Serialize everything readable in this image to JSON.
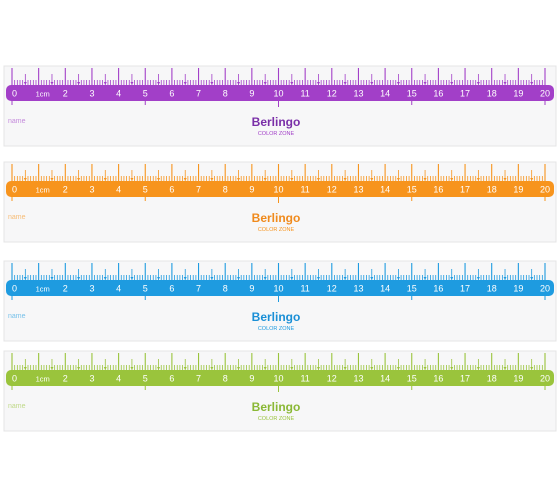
{
  "rulers": [
    {
      "id": "purple",
      "color": "#a23fc8",
      "name_label": "name",
      "brand": "Berlingo",
      "brand_color": "#7a2fa8",
      "zone_label": "COLOR ZONE",
      "numbers": [
        "0",
        "1cm",
        "2",
        "3",
        "4",
        "5",
        "6",
        "7",
        "8",
        "9",
        "10",
        "11",
        "12",
        "13",
        "14",
        "15",
        "16",
        "17",
        "18",
        "19",
        "20"
      ]
    },
    {
      "id": "orange",
      "color": "#f7941d",
      "name_label": "name",
      "brand": "Berlingo",
      "brand_color": "#f08a1c",
      "zone_label": "COLOR ZONE",
      "numbers": [
        "0",
        "1cm",
        "2",
        "3",
        "4",
        "5",
        "6",
        "7",
        "8",
        "9",
        "10",
        "11",
        "12",
        "13",
        "14",
        "15",
        "16",
        "17",
        "18",
        "19",
        "20"
      ]
    },
    {
      "id": "blue",
      "color": "#1e9be0",
      "name_label": "name",
      "brand": "Berlingo",
      "brand_color": "#1a8fd6",
      "zone_label": "COLOR ZONE",
      "numbers": [
        "0",
        "1cm",
        "2",
        "3",
        "4",
        "5",
        "6",
        "7",
        "8",
        "9",
        "10",
        "11",
        "12",
        "13",
        "14",
        "15",
        "16",
        "17",
        "18",
        "19",
        "20"
      ]
    },
    {
      "id": "green",
      "color": "#9ac43c",
      "name_label": "name",
      "brand": "Berlingo",
      "brand_color": "#8ab835",
      "zone_label": "COLOR ZONE",
      "numbers": [
        "0",
        "1cm",
        "2",
        "3",
        "4",
        "5",
        "6",
        "7",
        "8",
        "9",
        "10",
        "11",
        "12",
        "13",
        "14",
        "15",
        "16",
        "17",
        "18",
        "19",
        "20"
      ]
    }
  ]
}
